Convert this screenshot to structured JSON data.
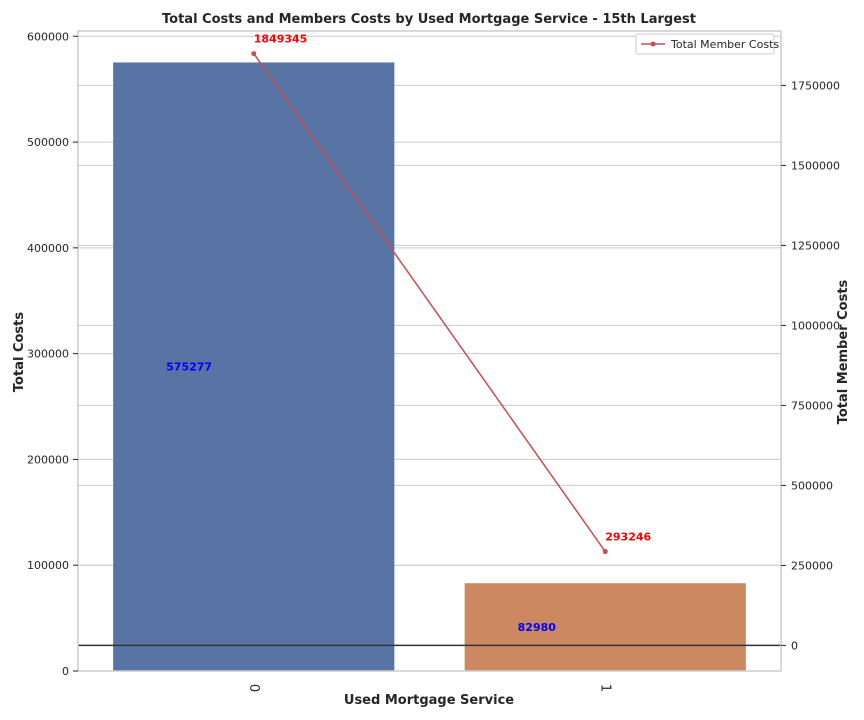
{
  "chart_data": {
    "type": "bar",
    "title": "Total Costs and Members Costs by Used Mortgage Service - 15th Largest",
    "xlabel": "Used Mortgage Service",
    "ylabel": "Total Costs",
    "y2label": "Total Member Costs",
    "categories": [
      "0",
      "1"
    ],
    "ylim": [
      0,
      605000
    ],
    "y2lim": [
      -80000,
      1920000
    ],
    "yticks": [
      0,
      100000,
      200000,
      300000,
      400000,
      500000,
      600000
    ],
    "y2ticks": [
      0,
      250000,
      500000,
      750000,
      1000000,
      1250000,
      1500000,
      1750000
    ],
    "grid": true,
    "legend_position": "top-right",
    "series": [
      {
        "kind": "bar",
        "axis": "left",
        "values": [
          575277,
          82980
        ],
        "colors": [
          "#5874a5",
          "#cc8860"
        ],
        "labels": [
          "575277",
          "82980"
        ]
      },
      {
        "kind": "line",
        "axis": "right",
        "name": "Total Member Costs",
        "values": [
          1849345,
          293246
        ],
        "color": "#c44e52",
        "labels": [
          "1849345",
          "293246"
        ]
      }
    ]
  }
}
